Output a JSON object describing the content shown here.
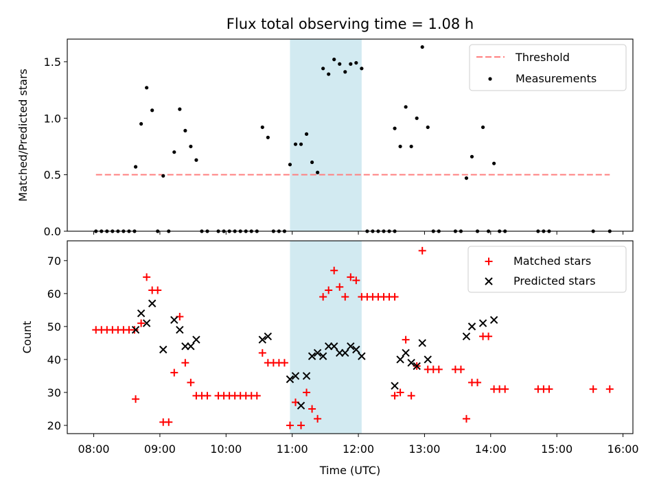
{
  "title": "Flux total observing time = 1.08 h",
  "colors": {
    "threshold": "#ff7f7f",
    "measurement": "#000000",
    "matched": "#ff0000",
    "predicted": "#000000",
    "highlight": "#add8e6"
  },
  "chart_data": [
    {
      "type": "scatter",
      "panel": "top",
      "ylabel": "Matched/Predicted stars",
      "xlim_hours": [
        7.6,
        16.15
      ],
      "ylim": [
        0,
        1.7
      ],
      "yticks": [
        0.0,
        0.5,
        1.0,
        1.5
      ],
      "ytick_labels": [
        "0.0",
        "0.5",
        "1.0",
        "1.5"
      ],
      "highlight_span": [
        "10:58",
        "12:03"
      ],
      "legend_position": "top-right",
      "threshold": {
        "name": "Threshold",
        "value": 0.5,
        "x_range": [
          "08:02",
          "15:48"
        ]
      },
      "series": [
        {
          "name": "Measurements",
          "points": [
            [
              "08:02",
              0
            ],
            [
              "08:07",
              0
            ],
            [
              "08:12",
              0
            ],
            [
              "08:17",
              0
            ],
            [
              "08:22",
              0
            ],
            [
              "08:27",
              0
            ],
            [
              "08:32",
              0
            ],
            [
              "08:37",
              0
            ],
            [
              "08:38",
              0.57
            ],
            [
              "08:43",
              0.95
            ],
            [
              "08:48",
              1.27
            ],
            [
              "08:53",
              1.07
            ],
            [
              "08:58",
              0
            ],
            [
              "09:03",
              0.49
            ],
            [
              "09:08",
              0
            ],
            [
              "09:13",
              0.7
            ],
            [
              "09:18",
              1.08
            ],
            [
              "09:23",
              0.89
            ],
            [
              "09:28",
              0.75
            ],
            [
              "09:33",
              0.63
            ],
            [
              "09:38",
              0
            ],
            [
              "09:43",
              0
            ],
            [
              "09:53",
              0
            ],
            [
              "09:58",
              0
            ],
            [
              "10:03",
              0
            ],
            [
              "10:08",
              0
            ],
            [
              "10:13",
              0
            ],
            [
              "10:18",
              0
            ],
            [
              "10:23",
              0
            ],
            [
              "10:28",
              0
            ],
            [
              "10:33",
              0.92
            ],
            [
              "10:38",
              0.83
            ],
            [
              "10:43",
              0
            ],
            [
              "10:48",
              0
            ],
            [
              "10:53",
              0
            ],
            [
              "10:58",
              0.59
            ],
            [
              "11:03",
              0.77
            ],
            [
              "11:08",
              0.77
            ],
            [
              "11:13",
              0.86
            ],
            [
              "11:18",
              0.61
            ],
            [
              "11:23",
              0.52
            ],
            [
              "11:28",
              1.44
            ],
            [
              "11:33",
              1.39
            ],
            [
              "11:38",
              1.52
            ],
            [
              "11:43",
              1.48
            ],
            [
              "11:48",
              1.41
            ],
            [
              "11:53",
              1.48
            ],
            [
              "11:58",
              1.49
            ],
            [
              "12:03",
              1.44
            ],
            [
              "12:08",
              0
            ],
            [
              "12:13",
              0
            ],
            [
              "12:18",
              0
            ],
            [
              "12:23",
              0
            ],
            [
              "12:28",
              0
            ],
            [
              "12:33",
              0
            ],
            [
              "12:33",
              0.91
            ],
            [
              "12:38",
              0.75
            ],
            [
              "12:43",
              1.1
            ],
            [
              "12:48",
              0.75
            ],
            [
              "12:53",
              1.0
            ],
            [
              "12:58",
              1.63
            ],
            [
              "13:03",
              0.92
            ],
            [
              "13:08",
              0
            ],
            [
              "13:13",
              0
            ],
            [
              "13:28",
              0
            ],
            [
              "13:33",
              0
            ],
            [
              "13:38",
              0.47
            ],
            [
              "13:43",
              0.66
            ],
            [
              "13:48",
              0
            ],
            [
              "13:53",
              0.92
            ],
            [
              "13:58",
              0
            ],
            [
              "14:03",
              0.6
            ],
            [
              "14:08",
              0
            ],
            [
              "14:13",
              0
            ],
            [
              "14:43",
              0
            ],
            [
              "14:48",
              0
            ],
            [
              "14:53",
              0
            ],
            [
              "15:33",
              0
            ],
            [
              "15:48",
              0
            ]
          ]
        }
      ]
    },
    {
      "type": "scatter",
      "panel": "bottom",
      "ylabel": "Count",
      "xlabel": "Time (UTC)",
      "xlim_hours": [
        7.6,
        16.15
      ],
      "ylim": [
        17.5,
        76
      ],
      "yticks": [
        20,
        30,
        40,
        50,
        60,
        70
      ],
      "ytick_labels": [
        "20",
        "30",
        "40",
        "50",
        "60",
        "70"
      ],
      "xticks": [
        "08:00",
        "09:00",
        "10:00",
        "11:00",
        "12:00",
        "13:00",
        "14:00",
        "15:00",
        "16:00"
      ],
      "highlight_span": [
        "10:58",
        "12:03"
      ],
      "legend_position": "top-right",
      "series": [
        {
          "name": "Matched stars",
          "marker": "plus",
          "points": [
            [
              "08:02",
              49
            ],
            [
              "08:07",
              49
            ],
            [
              "08:12",
              49
            ],
            [
              "08:17",
              49
            ],
            [
              "08:22",
              49
            ],
            [
              "08:27",
              49
            ],
            [
              "08:32",
              49
            ],
            [
              "08:37",
              49
            ],
            [
              "08:38",
              28
            ],
            [
              "08:43",
              51
            ],
            [
              "08:48",
              65
            ],
            [
              "08:53",
              61
            ],
            [
              "08:58",
              61
            ],
            [
              "09:03",
              21
            ],
            [
              "09:08",
              21
            ],
            [
              "09:13",
              36
            ],
            [
              "09:18",
              53
            ],
            [
              "09:23",
              39
            ],
            [
              "09:28",
              33
            ],
            [
              "09:33",
              29
            ],
            [
              "09:38",
              29
            ],
            [
              "09:43",
              29
            ],
            [
              "09:53",
              29
            ],
            [
              "09:58",
              29
            ],
            [
              "10:03",
              29
            ],
            [
              "10:08",
              29
            ],
            [
              "10:13",
              29
            ],
            [
              "10:18",
              29
            ],
            [
              "10:23",
              29
            ],
            [
              "10:28",
              29
            ],
            [
              "10:33",
              42
            ],
            [
              "10:38",
              39
            ],
            [
              "10:43",
              39
            ],
            [
              "10:48",
              39
            ],
            [
              "10:53",
              39
            ],
            [
              "10:58",
              20
            ],
            [
              "11:03",
              27
            ],
            [
              "11:08",
              20
            ],
            [
              "11:13",
              30
            ],
            [
              "11:18",
              25
            ],
            [
              "11:23",
              22
            ],
            [
              "11:28",
              59
            ],
            [
              "11:33",
              61
            ],
            [
              "11:38",
              67
            ],
            [
              "11:43",
              62
            ],
            [
              "11:48",
              59
            ],
            [
              "11:53",
              65
            ],
            [
              "11:58",
              64
            ],
            [
              "12:03",
              59
            ],
            [
              "12:08",
              59
            ],
            [
              "12:13",
              59
            ],
            [
              "12:18",
              59
            ],
            [
              "12:23",
              59
            ],
            [
              "12:28",
              59
            ],
            [
              "12:33",
              59
            ],
            [
              "12:33",
              29
            ],
            [
              "12:38",
              30
            ],
            [
              "12:43",
              46
            ],
            [
              "12:48",
              29
            ],
            [
              "12:53",
              38
            ],
            [
              "12:58",
              73
            ],
            [
              "13:03",
              37
            ],
            [
              "13:08",
              37
            ],
            [
              "13:13",
              37
            ],
            [
              "13:28",
              37
            ],
            [
              "13:33",
              37
            ],
            [
              "13:38",
              22
            ],
            [
              "13:43",
              33
            ],
            [
              "13:48",
              33
            ],
            [
              "13:53",
              47
            ],
            [
              "13:58",
              47
            ],
            [
              "14:03",
              31
            ],
            [
              "14:08",
              31
            ],
            [
              "14:13",
              31
            ],
            [
              "14:43",
              31
            ],
            [
              "14:48",
              31
            ],
            [
              "14:53",
              31
            ],
            [
              "15:33",
              31
            ],
            [
              "15:48",
              31
            ]
          ]
        },
        {
          "name": "Predicted stars",
          "marker": "x",
          "points": [
            [
              "08:38",
              49
            ],
            [
              "08:43",
              54
            ],
            [
              "08:48",
              51
            ],
            [
              "08:53",
              57
            ],
            [
              "09:03",
              43
            ],
            [
              "09:13",
              52
            ],
            [
              "09:18",
              49
            ],
            [
              "09:23",
              44
            ],
            [
              "09:28",
              44
            ],
            [
              "09:33",
              46
            ],
            [
              "10:33",
              46
            ],
            [
              "10:38",
              47
            ],
            [
              "10:58",
              34
            ],
            [
              "11:03",
              35
            ],
            [
              "11:08",
              26
            ],
            [
              "11:13",
              35
            ],
            [
              "11:18",
              41
            ],
            [
              "11:23",
              42
            ],
            [
              "11:28",
              41
            ],
            [
              "11:33",
              44
            ],
            [
              "11:38",
              44
            ],
            [
              "11:43",
              42
            ],
            [
              "11:48",
              42
            ],
            [
              "11:53",
              44
            ],
            [
              "11:58",
              43
            ],
            [
              "12:03",
              41
            ],
            [
              "12:33",
              32
            ],
            [
              "12:38",
              40
            ],
            [
              "12:43",
              42
            ],
            [
              "12:48",
              39
            ],
            [
              "12:53",
              38
            ],
            [
              "12:58",
              45
            ],
            [
              "13:03",
              40
            ],
            [
              "13:38",
              47
            ],
            [
              "13:43",
              50
            ],
            [
              "13:53",
              51
            ],
            [
              "14:03",
              52
            ]
          ]
        }
      ]
    }
  ]
}
